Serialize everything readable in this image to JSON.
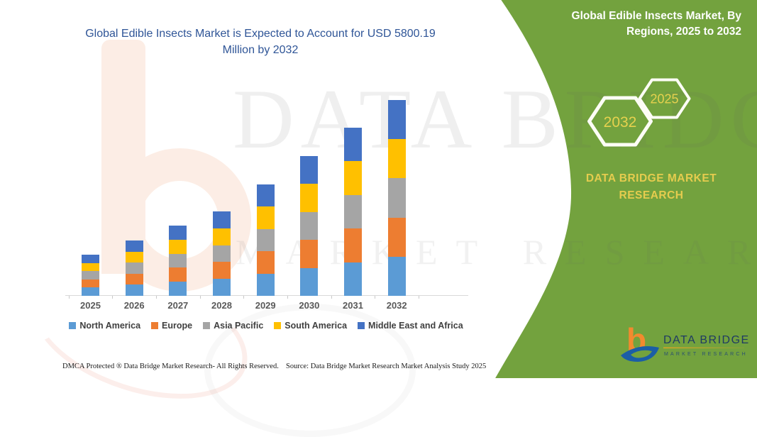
{
  "left_panel": {
    "title": "Global Edible Insects Market is Expected to Account for USD 5800.19 Million by 2032",
    "footer_left": "DMCA Protected ® Data Bridge Market Research-  All Rights Reserved.",
    "footer_right": "Source: Data Bridge Market Research  Market Analysis Study 2025"
  },
  "right_panel": {
    "title": "Global Edible Insects Market, By Regions, 2025 to 2032",
    "hexagons": [
      {
        "label": "2032"
      },
      {
        "label": "2025"
      }
    ],
    "brand_line1": "DATA BRIDGE MARKET",
    "brand_line2": "RESEARCH",
    "logo": {
      "glyph": "b",
      "name": "DATA BRIDGE",
      "subtext": "MARKET RESEARCH"
    },
    "colors": {
      "background": "#73A23E",
      "title_text": "#FFFFFF",
      "accent_gold": "#E5CC4E"
    }
  },
  "watermark": {
    "text_primary": "DATA BRIDGE",
    "text_secondary": "MARKET RESEARCH"
  },
  "chart_data": {
    "type": "bar",
    "stacked": true,
    "title": "Global Edible Insects Market is Expected to Account for USD 5800.19 Million by 2032",
    "unit": "USD Million",
    "categories": [
      "2025",
      "2026",
      "2027",
      "2028",
      "2029",
      "2030",
      "2031",
      "2032"
    ],
    "series": [
      {
        "name": "North America",
        "color": "#5B9BD5",
        "values": [
          244,
          328,
          416,
          500,
          660,
          828,
          996,
          1160
        ]
      },
      {
        "name": "Europe",
        "color": "#ED7D31",
        "values": [
          244,
          328,
          416,
          500,
          660,
          828,
          996,
          1160
        ]
      },
      {
        "name": "Asia Pacific",
        "color": "#A5A5A5",
        "values": [
          244,
          328,
          416,
          500,
          660,
          828,
          996,
          1160
        ]
      },
      {
        "name": "South America",
        "color": "#FFC000",
        "values": [
          244,
          328,
          416,
          500,
          660,
          828,
          996,
          1160
        ]
      },
      {
        "name": "Middle East and Africa",
        "color": "#4472C4",
        "values": [
          244,
          328,
          416,
          500,
          660,
          828,
          996,
          1160.19
        ]
      }
    ],
    "totals": [
      1220,
      1640,
      2080,
      2500,
      3300,
      4140,
      4980,
      5800.19
    ],
    "ylim": [
      0,
      5800.19
    ],
    "gridlines": false,
    "y_axis_visible": false,
    "legend_position": "bottom"
  }
}
